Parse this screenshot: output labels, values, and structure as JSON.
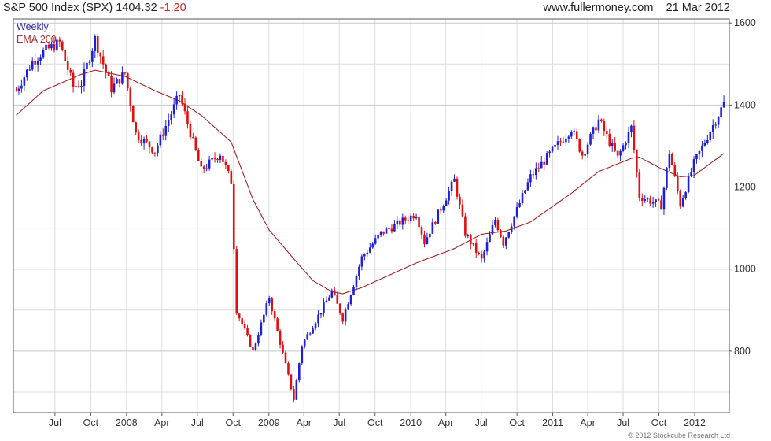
{
  "header": {
    "symbol": "S&P 500 Index (SPX)",
    "last_price": "1404.32",
    "change": "-1.20",
    "website": "www.fullermoney.com",
    "date": "21 Mar 2012"
  },
  "legend": {
    "frequency": "Weekly",
    "ema": "EMA 200"
  },
  "copyright": "© 2012 Stockcube Research Ltd",
  "colors": {
    "up": "#1f1fd6",
    "down": "#e01010",
    "ema": "#a52222",
    "grid": "#dcdcdc",
    "axis": "#555555"
  },
  "chart_data": {
    "type": "candlestick",
    "frequency": "weekly",
    "x_tick_labels": [
      "Jul",
      "Oct",
      "2008",
      "Apr",
      "Jul",
      "Oct",
      "2009",
      "Apr",
      "Jul",
      "Oct",
      "2010",
      "Apr",
      "Jul",
      "Oct",
      "2011",
      "Apr",
      "Jul",
      "Oct",
      "2012"
    ],
    "y_ticks": [
      800,
      1000,
      1200,
      1400,
      1600
    ],
    "ylim": [
      650,
      1610
    ],
    "grid": true,
    "close_anchors": [
      [
        "2007-03-23",
        1435
      ],
      [
        "2007-05-04",
        1505
      ],
      [
        "2007-06-01",
        1530
      ],
      [
        "2007-07-13",
        1552
      ],
      [
        "2007-08-17",
        1445
      ],
      [
        "2007-09-07",
        1453
      ],
      [
        "2007-10-12",
        1561
      ],
      [
        "2007-11-23",
        1440
      ],
      [
        "2007-12-28",
        1478
      ],
      [
        "2008-01-25",
        1330
      ],
      [
        "2008-03-14",
        1288
      ],
      [
        "2008-05-16",
        1425
      ],
      [
        "2008-07-11",
        1240
      ],
      [
        "2008-08-29",
        1282
      ],
      [
        "2008-09-26",
        1213
      ],
      [
        "2008-10-10",
        899
      ],
      [
        "2008-11-21",
        800
      ],
      [
        "2009-01-02",
        931
      ],
      [
        "2009-03-06",
        683
      ],
      [
        "2009-03-27",
        815
      ],
      [
        "2009-06-12",
        946
      ],
      [
        "2009-07-10",
        879
      ],
      [
        "2009-08-28",
        1028
      ],
      [
        "2009-10-16",
        1087
      ],
      [
        "2010-01-15",
        1136
      ],
      [
        "2010-02-05",
        1066
      ],
      [
        "2010-04-23",
        1217
      ],
      [
        "2010-05-21",
        1087
      ],
      [
        "2010-07-02",
        1022
      ],
      [
        "2010-08-06",
        1121
      ],
      [
        "2010-08-27",
        1064
      ],
      [
        "2010-11-05",
        1225
      ],
      [
        "2011-02-18",
        1343
      ],
      [
        "2011-03-18",
        1279
      ],
      [
        "2011-04-29",
        1363
      ],
      [
        "2011-06-17",
        1271
      ],
      [
        "2011-07-22",
        1345
      ],
      [
        "2011-08-12",
        1178
      ],
      [
        "2011-10-07",
        1155
      ],
      [
        "2011-10-28",
        1285
      ],
      [
        "2011-11-25",
        1158
      ],
      [
        "2011-12-30",
        1257
      ],
      [
        "2012-03-16",
        1404
      ],
      [
        "2012-03-21",
        1404
      ]
    ],
    "ema_200_anchors": [
      [
        "2007-03-23",
        1375
      ],
      [
        "2007-06-01",
        1435
      ],
      [
        "2007-09-07",
        1475
      ],
      [
        "2007-10-12",
        1485
      ],
      [
        "2007-12-28",
        1470
      ],
      [
        "2008-03-14",
        1435
      ],
      [
        "2008-05-16",
        1410
      ],
      [
        "2008-07-11",
        1375
      ],
      [
        "2008-09-26",
        1310
      ],
      [
        "2008-11-21",
        1170
      ],
      [
        "2009-01-02",
        1095
      ],
      [
        "2009-03-06",
        1025
      ],
      [
        "2009-04-24",
        972
      ],
      [
        "2009-06-12",
        945
      ],
      [
        "2009-07-10",
        940
      ],
      [
        "2009-08-28",
        955
      ],
      [
        "2010-01-15",
        1015
      ],
      [
        "2010-04-23",
        1050
      ],
      [
        "2010-07-02",
        1085
      ],
      [
        "2010-09-03",
        1093
      ],
      [
        "2010-11-05",
        1115
      ],
      [
        "2011-02-18",
        1185
      ],
      [
        "2011-04-29",
        1238
      ],
      [
        "2011-07-22",
        1270
      ],
      [
        "2011-08-12",
        1273
      ],
      [
        "2011-10-07",
        1245
      ],
      [
        "2011-11-25",
        1225
      ],
      [
        "2011-12-30",
        1228
      ],
      [
        "2012-03-16",
        1282
      ],
      [
        "2012-03-21",
        1285
      ]
    ],
    "tick_dates": [
      "2007-07-01",
      "2007-10-01",
      "2008-01-01",
      "2008-04-01",
      "2008-07-01",
      "2008-10-01",
      "2009-01-01",
      "2009-04-01",
      "2009-07-01",
      "2009-10-01",
      "2010-01-01",
      "2010-04-01",
      "2010-07-01",
      "2010-10-01",
      "2011-01-01",
      "2011-04-01",
      "2011-07-01",
      "2011-10-01",
      "2012-01-01"
    ],
    "x_range": [
      "2007-03-16",
      "2012-03-30"
    ]
  }
}
